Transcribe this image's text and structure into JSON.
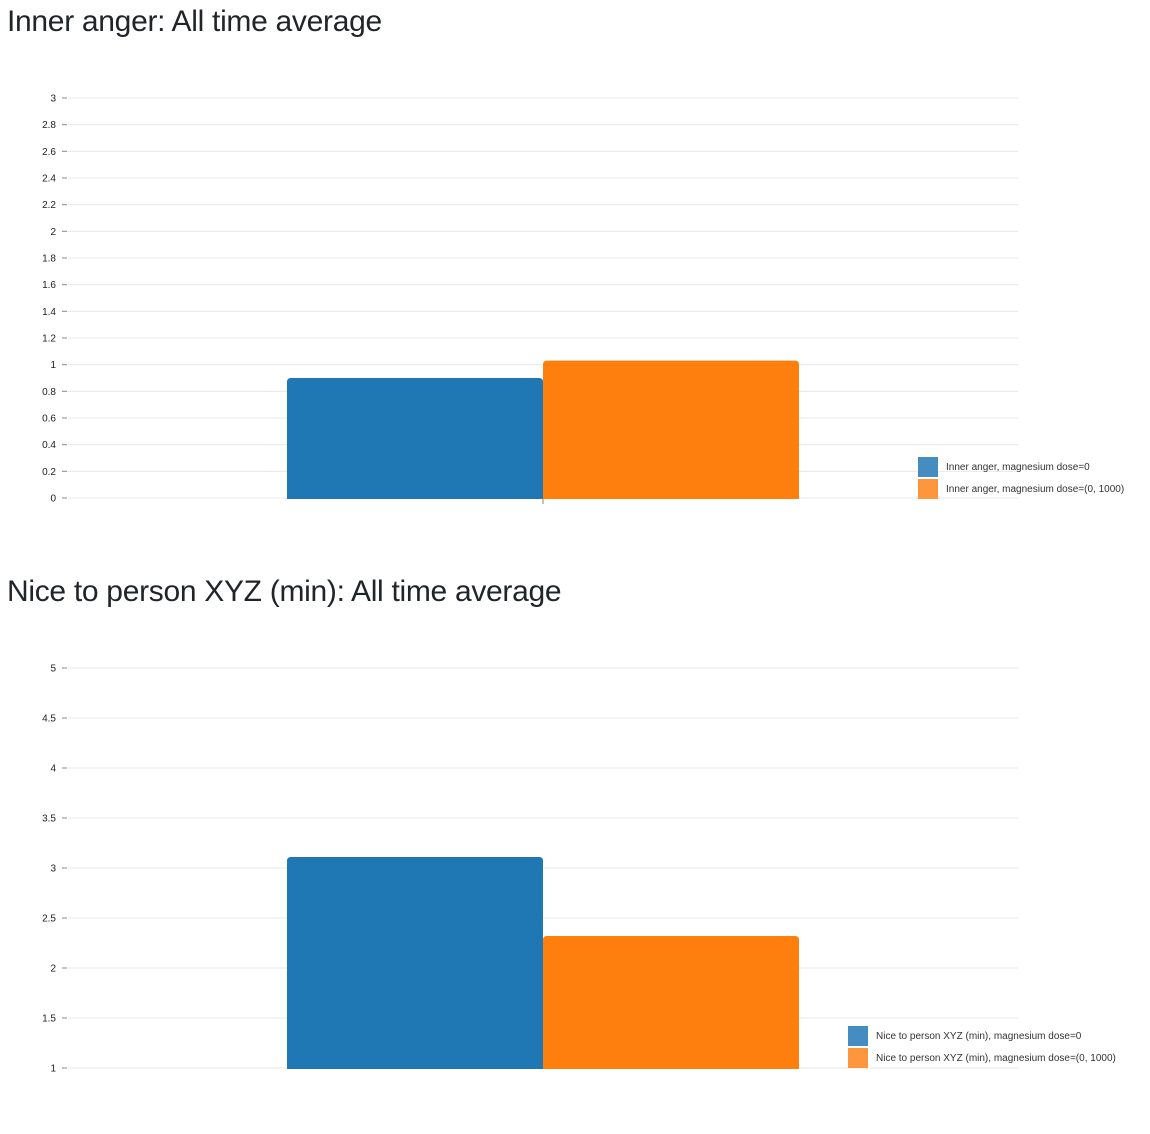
{
  "colors": {
    "series0": "#1f77b4",
    "series1": "#ff7f0e",
    "legend0": "#458cc0",
    "legend1": "#fd963c",
    "grid": "#e8e8e8",
    "axis": "#888888"
  },
  "chart_data": [
    {
      "type": "bar",
      "title": "Inner anger: All time average",
      "xlabel": "",
      "ylabel": "",
      "ylim": [
        0,
        3
      ],
      "yticks": [
        "0",
        "0.2",
        "0.4",
        "0.6",
        "0.8",
        "1",
        "1.2",
        "1.4",
        "1.6",
        "1.8",
        "2",
        "2.2",
        "2.4",
        "2.6",
        "2.8",
        "3"
      ],
      "categories": [
        ""
      ],
      "legend_position": "bottom-right",
      "series": [
        {
          "name": "Inner anger, magnesium dose=0",
          "values": [
            0.9
          ]
        },
        {
          "name": "Inner anger, magnesium dose=(0, 1000)",
          "values": [
            1.03
          ]
        }
      ]
    },
    {
      "type": "bar",
      "title": "Nice to person XYZ (min): All time average",
      "xlabel": "",
      "ylabel": "",
      "ylim": [
        1,
        5
      ],
      "yticks": [
        "1",
        "1.5",
        "2",
        "2.5",
        "3",
        "3.5",
        "4",
        "4.5",
        "5"
      ],
      "categories": [
        ""
      ],
      "legend_position": "bottom-right",
      "series": [
        {
          "name": "Nice to person XYZ (min), magnesium dose=0",
          "values": [
            3.11
          ]
        },
        {
          "name": "Nice to person XYZ (min), magnesium dose=(0, 1000)",
          "values": [
            2.32
          ]
        }
      ]
    }
  ]
}
